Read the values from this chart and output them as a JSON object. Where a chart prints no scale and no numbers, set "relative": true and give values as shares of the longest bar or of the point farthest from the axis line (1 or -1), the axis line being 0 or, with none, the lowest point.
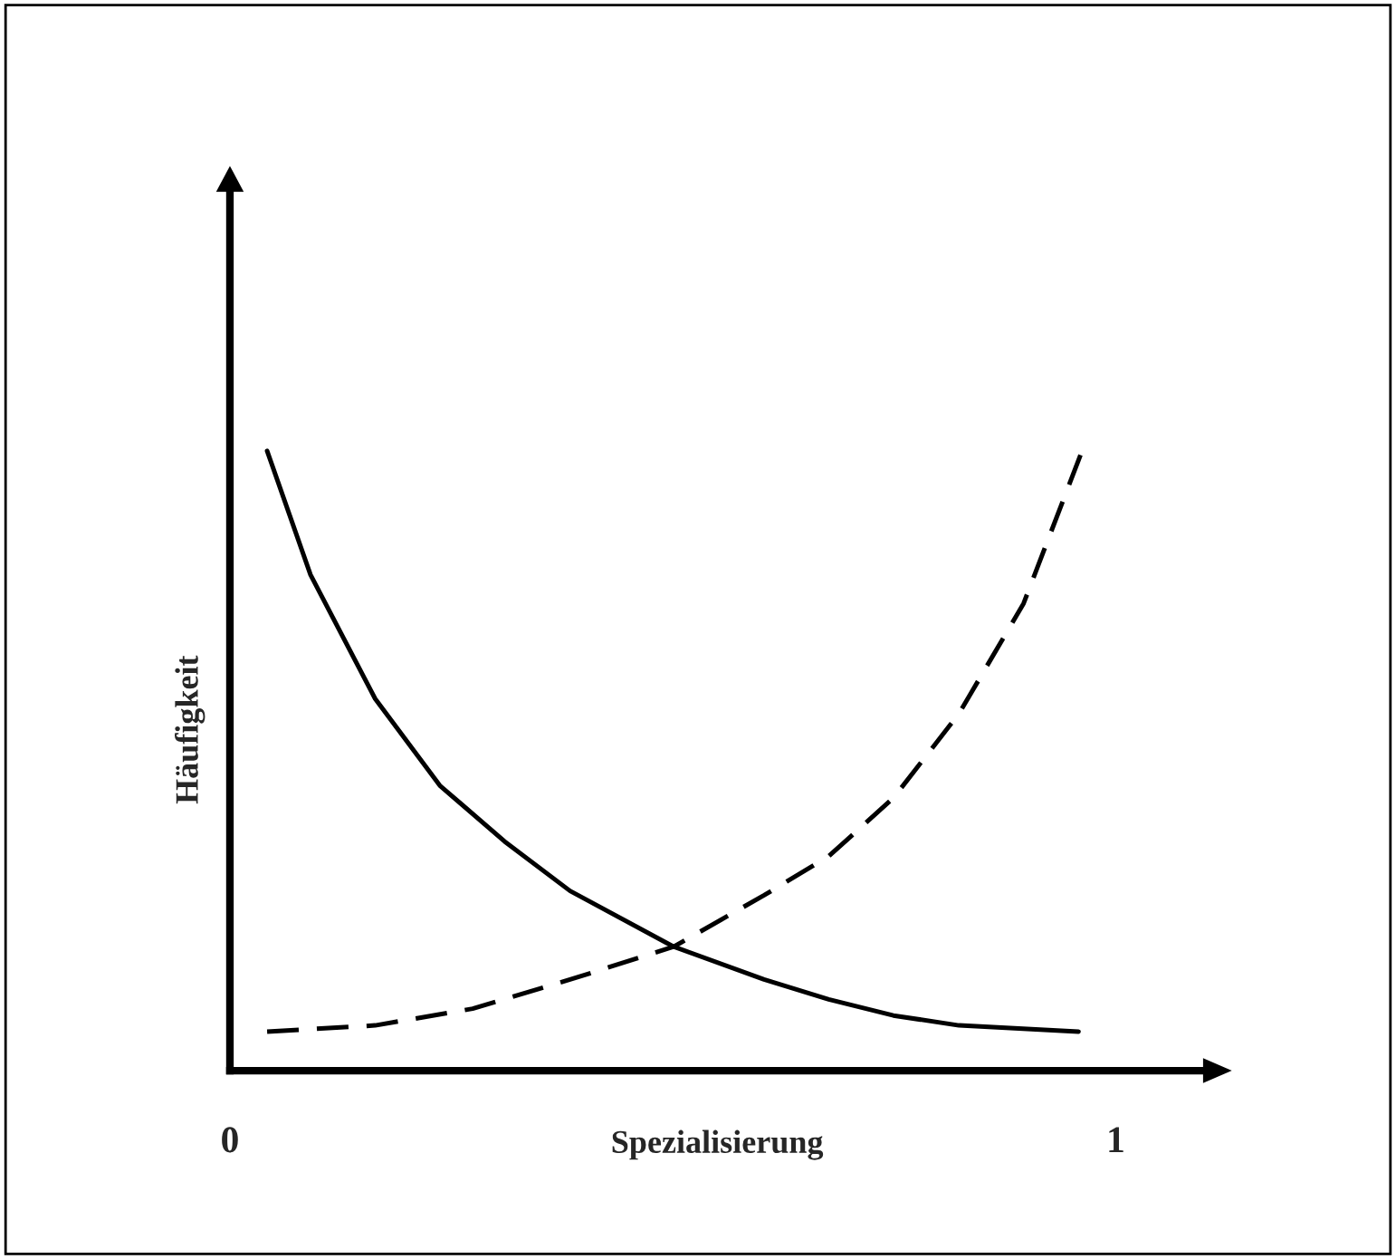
{
  "chart_data": {
    "type": "line",
    "xlabel": "Spezialisierung",
    "ylabel": "Häufigkeit",
    "relative": true,
    "xlim": [
      0,
      1.1
    ],
    "xticks": [
      0,
      1
    ],
    "series": [
      {
        "color": "#000000",
        "line_style": "solid",
        "x": [
          0.042,
          0.091,
          0.164,
          0.237,
          0.31,
          0.384,
          0.501,
          0.603,
          0.676,
          0.749,
          0.823,
          0.958
        ],
        "values": [
          1.0,
          0.8,
          0.6,
          0.46,
          0.37,
          0.29,
          0.2,
          0.147,
          0.115,
          0.089,
          0.073,
          0.063
        ]
      },
      {
        "color": "#000000",
        "line_style": "dashed",
        "x": [
          0.042,
          0.164,
          0.274,
          0.384,
          0.501,
          0.603,
          0.676,
          0.749,
          0.823,
          0.896,
          0.962
        ],
        "values": [
          0.063,
          0.073,
          0.1,
          0.147,
          0.2,
          0.283,
          0.346,
          0.44,
          0.576,
          0.754,
          1.0
        ]
      }
    ]
  }
}
